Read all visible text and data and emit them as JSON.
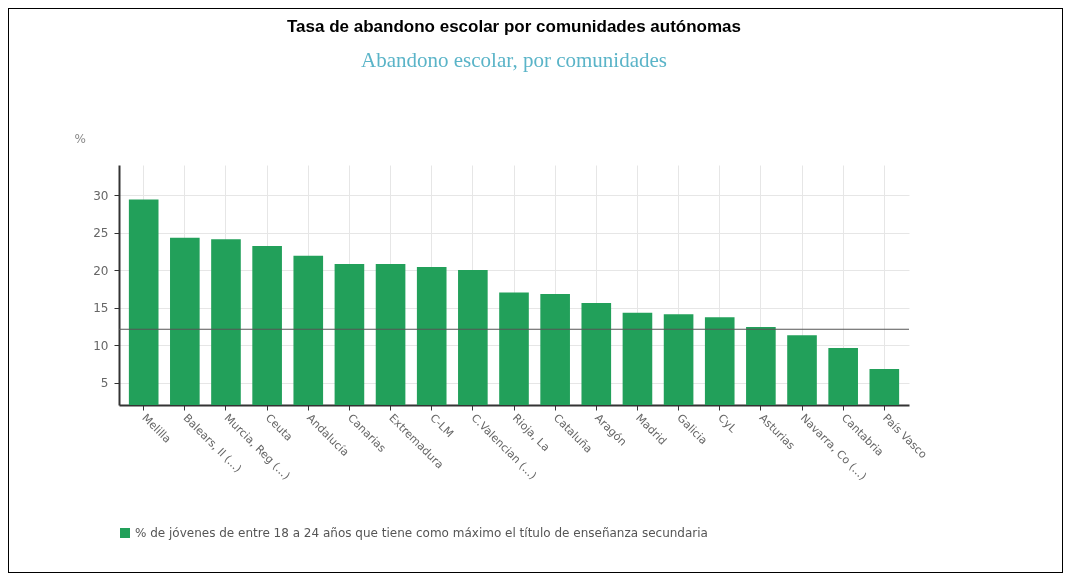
{
  "chart_data": {
    "type": "bar",
    "title": "Tasa de abandono escolar por comunidades autónomas",
    "subtitle": "Abandono escolar, por comunidades",
    "ylabel": "%",
    "categories": [
      "Melilla",
      "Balears, Il (...)",
      "Murcia, Reg (...)",
      "Ceuta",
      "Andalucía",
      "Canarias",
      "Extremadura",
      "C-LM",
      "C.Valencian (...)",
      "Rioja, La",
      "Cataluña",
      "Aragón",
      "Madrid",
      "Galicia",
      "CyL",
      "Asturias",
      "Navarra, Co (...)",
      "Cantabria",
      "País Vasco"
    ],
    "series": [
      {
        "name": "% de jóvenes de entre 18 a 24 años que tiene como máximo el título de enseñanza secundaria",
        "color": "#22a05a",
        "values": [
          29.4,
          24.3,
          24.1,
          23.2,
          21.9,
          20.8,
          20.8,
          20.4,
          20.0,
          17.0,
          16.8,
          15.6,
          14.3,
          14.1,
          13.7,
          12.4,
          11.3,
          9.6,
          6.8
        ]
      }
    ],
    "ylim": [
      2,
      34
    ],
    "yticks": [
      5,
      10,
      15,
      20,
      25,
      30
    ],
    "grid": true,
    "legend": "bottom",
    "ref_lines": [
      {
        "axis": "y",
        "value": 12.1,
        "color": "#555555"
      }
    ]
  }
}
